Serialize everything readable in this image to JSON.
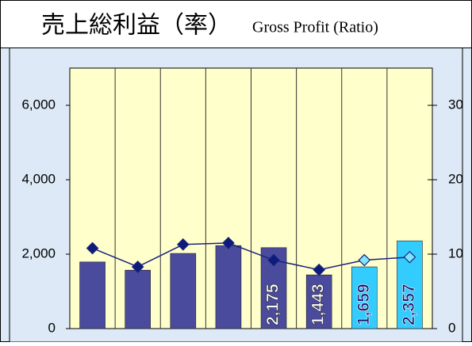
{
  "chart_data": {
    "type": "bar_line",
    "title": "売上総利益（率）",
    "subtitle": "Gross Profit (Ratio)",
    "categories": [
      null,
      null,
      null,
      null,
      null,
      null,
      null,
      null
    ],
    "series": [
      {
        "type": "bar",
        "values": [
          1790,
          1570,
          2020,
          2230,
          2175,
          1443,
          1659,
          2357
        ],
        "value_labels": [
          null,
          null,
          null,
          null,
          "2,175",
          "1,443",
          "1,659",
          "2,357"
        ],
        "colors": [
          "#4b4b9e",
          "#4b4b9e",
          "#4b4b9e",
          "#4b4b9e",
          "#4b4b9e",
          "#4b4b9e",
          "#33ccff",
          "#33ccff"
        ],
        "value_label_colors": [
          "#ffffff",
          "#ffffff",
          "#ffffff",
          "#ffffff",
          "#ffffff",
          "#ffffff",
          "#1a1a6e",
          "#1a1a6e"
        ]
      },
      {
        "type": "line",
        "axis": "y2",
        "color": "#1a237e",
        "values": [
          10.8,
          8.3,
          11.3,
          11.5,
          9.2,
          7.9,
          9.2,
          9.6
        ],
        "marker_colors": [
          "#0d1b7a",
          "#0d1b7a",
          "#0d1b7a",
          "#0d1b7a",
          "#0d1b7a",
          "#0d1b7a",
          "#7fe5ff",
          "#7fe5ff"
        ]
      }
    ],
    "ylim": [
      0,
      7000
    ],
    "yticks": [
      0,
      {
        "value": 2000,
        "label": "2,000"
      },
      {
        "value": 4000,
        "label": "4,000"
      },
      {
        "value": 6000,
        "label": "6,000"
      }
    ],
    "y2lim": [
      0,
      35
    ],
    "y2ticks": [
      0,
      10,
      20,
      30
    ],
    "plot_background": "#ffffcc"
  }
}
